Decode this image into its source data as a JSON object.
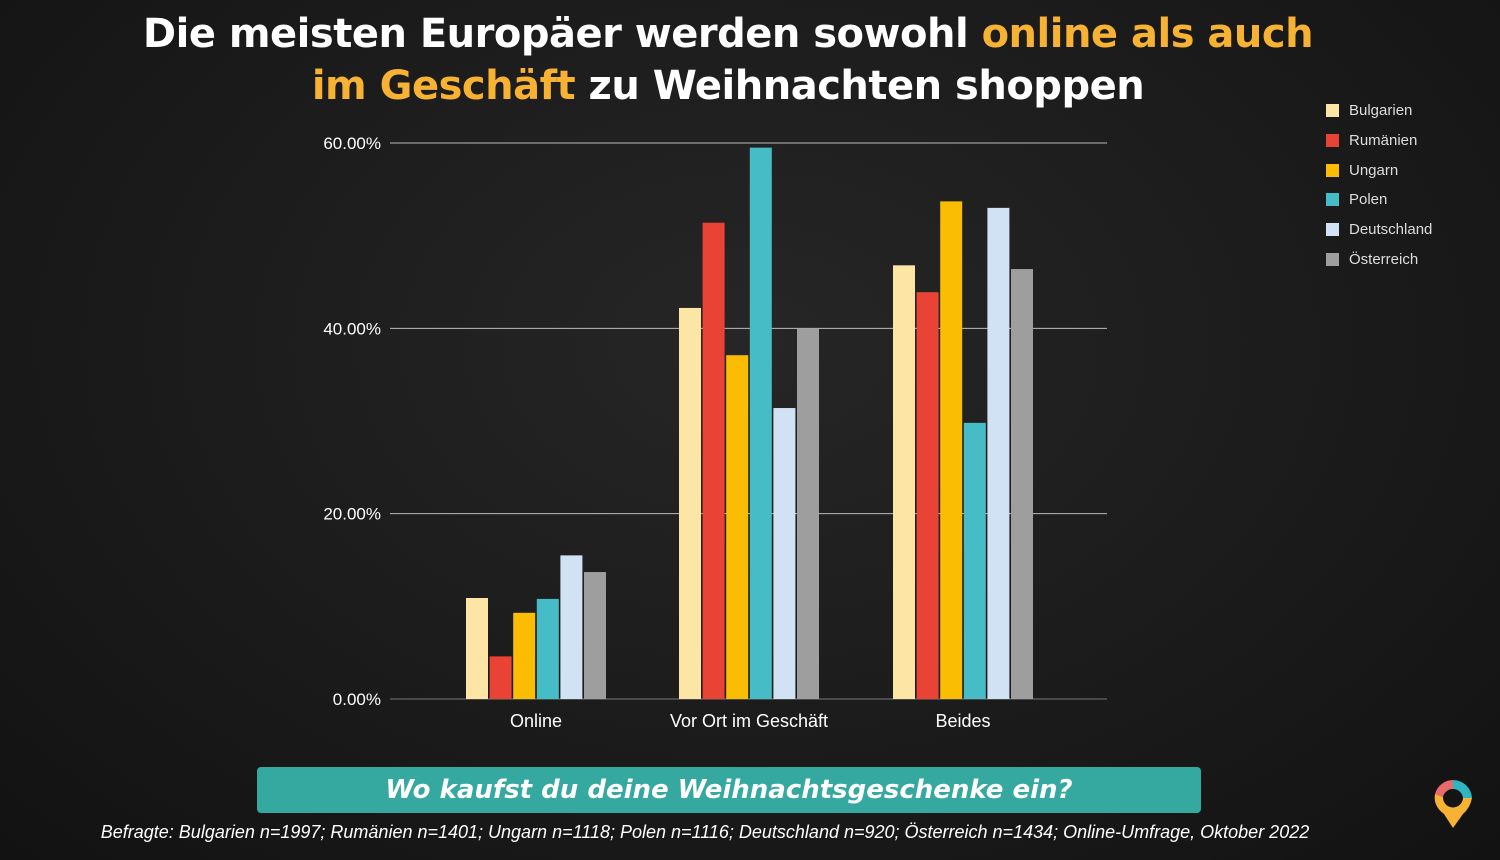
{
  "title": {
    "line1_plain": "Die meisten Europäer werden sowohl ",
    "line1_highlight": "online als auch",
    "line2_highlight": "im Geschäft",
    "line2_plain": " zu Weihnachten shoppen",
    "highlight_color": "#f7b234"
  },
  "question": "Wo kaufst du deine Weihnachtsgeschenke ein?",
  "footnote": "Befragte: Bulgarien n=1997; Rumänien n=1401; Ungarn n=1118; Polen n=1116; Deutschland n=920; Österreich n=1434; Online-Umfrage, Oktober 2022",
  "chart_data": {
    "type": "bar",
    "categories": [
      "Online",
      "Vor Ort im Geschäft",
      "Beides"
    ],
    "ylim": [
      0,
      60
    ],
    "yticks": [
      "0.00%",
      "20.00%",
      "40.00%",
      "60.00%"
    ],
    "ytick_values": [
      0,
      20,
      40,
      60
    ],
    "grid": true,
    "legend_position": "top-right",
    "series": [
      {
        "name": "Bulgarien",
        "color": "#fde5a6",
        "values": [
          10.9,
          42.2,
          46.8
        ]
      },
      {
        "name": "Rumänien",
        "color": "#e94335",
        "values": [
          4.6,
          51.4,
          43.9
        ]
      },
      {
        "name": "Ungarn",
        "color": "#fbbc04",
        "values": [
          9.3,
          37.1,
          53.7
        ]
      },
      {
        "name": "Polen",
        "color": "#46bdc6",
        "values": [
          10.8,
          59.5,
          29.8
        ]
      },
      {
        "name": "Deutschland",
        "color": "#d0e2f3",
        "values": [
          15.5,
          31.4,
          53.0
        ]
      },
      {
        "name": "Österreich",
        "color": "#9e9e9e",
        "values": [
          13.7,
          40.0,
          46.4
        ]
      }
    ]
  }
}
